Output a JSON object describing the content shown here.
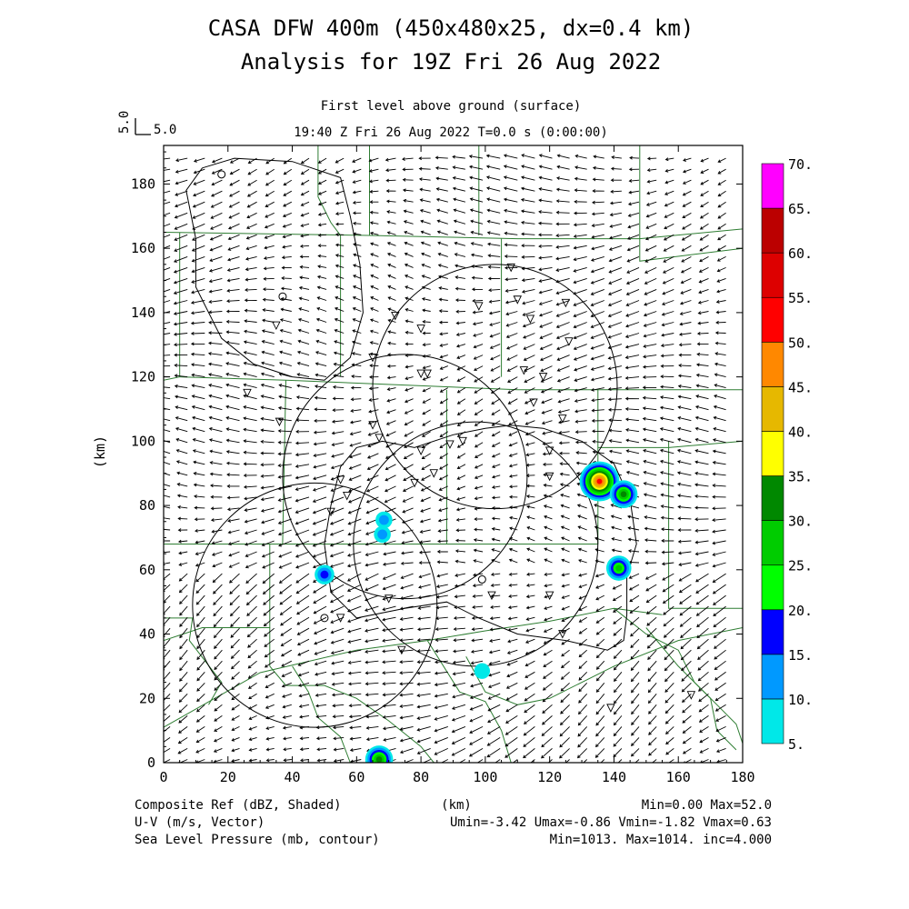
{
  "titles": {
    "line1": "CASA DFW 400m (450x480x25, dx=0.4 km)",
    "line2": "Analysis for 19Z Fri 26 Aug 2022",
    "level": "First level above ground (surface)",
    "time": "19:40 Z Fri 26 Aug 2022   T=0.0 s (0:00:00)"
  },
  "vector_key": {
    "label_vertical": "5.0",
    "label": "5.0"
  },
  "footer": {
    "left1": "Composite Ref (dBZ, Shaded)",
    "left2": "U-V (m/s, Vector)",
    "left3": "Sea Level Pressure (mb, contour)",
    "center1": "(km)",
    "right1": "Min=0.00 Max=52.0",
    "right2": "Umin=-3.42 Umax=-0.86 Vmin=-1.82 Vmax=0.63",
    "right3": "Min=1013. Max=1014. inc=4.000"
  },
  "colors": {
    "county_lines": "#2e7d32",
    "contours": "#000000",
    "colorbar": [
      "#00e8e8",
      "#0099ff",
      "#0000ff",
      "#00ff00",
      "#00cc00",
      "#008800",
      "#ffff00",
      "#e6b800",
      "#ff8800",
      "#ff0000",
      "#dd0000",
      "#bb0000",
      "#ff00ff"
    ]
  },
  "chart_data": {
    "type": "heatmap",
    "xlabel": "(km)",
    "ylabel": "(km)",
    "xlim": [
      0,
      180
    ],
    "ylim": [
      0,
      192
    ],
    "xticks": [
      "0",
      "20",
      "40",
      "60",
      "80",
      "100",
      "120",
      "140",
      "160",
      "180"
    ],
    "yticks": [
      "0",
      "20",
      "40",
      "60",
      "80",
      "100",
      "120",
      "140",
      "160",
      "180"
    ],
    "colorbar_ticks": [
      "5.",
      "10.",
      "15.",
      "20.",
      "25.",
      "30.",
      "35.",
      "40.",
      "45.",
      "50.",
      "55.",
      "60.",
      "65.",
      "70."
    ],
    "colorbar_range": [
      5,
      70
    ],
    "wind_uv_mean": [
      -2.2,
      -0.4
    ],
    "reflectivity_cells": [
      {
        "x": 135.5,
        "y": 87.5,
        "peak_dbz": 52
      },
      {
        "x": 143,
        "y": 83.5,
        "peak_dbz": 30
      },
      {
        "x": 141.5,
        "y": 60.5,
        "peak_dbz": 25
      },
      {
        "x": 67,
        "y": 1,
        "peak_dbz": 30
      },
      {
        "x": 50,
        "y": 58.5,
        "peak_dbz": 15
      },
      {
        "x": 68.5,
        "y": 75.5,
        "peak_dbz": 10
      },
      {
        "x": 68,
        "y": 71,
        "peak_dbz": 10
      },
      {
        "x": 99,
        "y": 28.5,
        "peak_dbz": 8
      }
    ],
    "radar_range_rings": [
      {
        "x": 103,
        "y": 117,
        "r": 38
      },
      {
        "x": 75,
        "y": 89,
        "r": 38
      },
      {
        "x": 97,
        "y": 68,
        "r": 38
      },
      {
        "x": 47,
        "y": 49,
        "r": 38
      }
    ],
    "pressure_contour_labels": [
      {
        "x": 18,
        "y": 183,
        "label": "1014"
      },
      {
        "x": 37,
        "y": 145,
        "label": "1014"
      },
      {
        "x": 99,
        "y": 57,
        "label": "1014"
      },
      {
        "x": 50,
        "y": 45,
        "label": "1014"
      }
    ]
  }
}
